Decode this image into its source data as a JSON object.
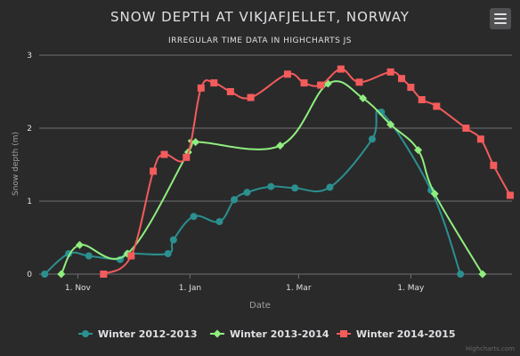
{
  "chart_data": {
    "type": "line",
    "title": "SNOW DEPTH AT VIKJAFJELLET, NORWAY",
    "subtitle": "IRREGULAR TIME DATA IN HIGHCHARTS JS",
    "xlabel": "Date",
    "ylabel": "Snow depth (m)",
    "x_ticks": [
      "1. Nov",
      "1. Jan",
      "1. Mar",
      "1. May"
    ],
    "y_ticks": [
      0,
      1,
      2,
      3
    ],
    "ylim": [
      0,
      3
    ],
    "grid": true,
    "legend_position": "bottom",
    "credits": "Highcharts.com",
    "series": [
      {
        "name": "Winter 2012-2013",
        "color": "#2b908f",
        "marker": "circle",
        "points": [
          [
            "10-14",
            0
          ],
          [
            "10-27",
            0.28
          ],
          [
            "11-07",
            0.25
          ],
          [
            "11-24",
            0.2
          ],
          [
            "11-28",
            0.28
          ],
          [
            "12-20",
            0.28
          ],
          [
            "12-23",
            0.47
          ],
          [
            "01-03",
            0.79
          ],
          [
            "01-17",
            0.72
          ],
          [
            "01-25",
            1.02
          ],
          [
            "02-01",
            1.12
          ],
          [
            "02-14",
            1.2
          ],
          [
            "02-27",
            1.18
          ],
          [
            "03-18",
            1.19
          ],
          [
            "04-10",
            1.85
          ],
          [
            "04-15",
            2.22
          ],
          [
            "05-12",
            1.15
          ],
          [
            "05-28",
            0
          ]
        ]
      },
      {
        "name": "Winter 2013-2014",
        "color": "#90ee7e",
        "marker": "diamond",
        "points": [
          [
            "10-23",
            0
          ],
          [
            "11-02",
            0.4
          ],
          [
            "11-28",
            0.28
          ],
          [
            "12-31",
            1.67
          ],
          [
            "01-04",
            1.81
          ],
          [
            "02-19",
            1.76
          ],
          [
            "03-17",
            2.61
          ],
          [
            "04-05",
            2.41
          ],
          [
            "04-20",
            2.05
          ],
          [
            "05-05",
            1.7
          ],
          [
            "05-14",
            1.1
          ],
          [
            "06-09",
            0
          ]
        ]
      },
      {
        "name": "Winter 2014-2015",
        "color": "#f45b5b",
        "marker": "square",
        "points": [
          [
            "11-15",
            0
          ],
          [
            "11-30",
            0.25
          ],
          [
            "12-12",
            1.41
          ],
          [
            "12-18",
            1.64
          ],
          [
            "12-30",
            1.6
          ],
          [
            "01-07",
            2.55
          ],
          [
            "01-14",
            2.62
          ],
          [
            "01-23",
            2.5
          ],
          [
            "02-03",
            2.42
          ],
          [
            "02-23",
            2.74
          ],
          [
            "03-04",
            2.62
          ],
          [
            "03-13",
            2.59
          ],
          [
            "03-24",
            2.81
          ],
          [
            "04-03",
            2.63
          ],
          [
            "04-20",
            2.77
          ],
          [
            "04-26",
            2.68
          ],
          [
            "05-01",
            2.56
          ],
          [
            "05-07",
            2.39
          ],
          [
            "05-15",
            2.3
          ],
          [
            "05-31",
            2.0
          ],
          [
            "06-08",
            1.85
          ],
          [
            "06-15",
            1.49
          ],
          [
            "06-24",
            1.08
          ]
        ]
      }
    ]
  }
}
